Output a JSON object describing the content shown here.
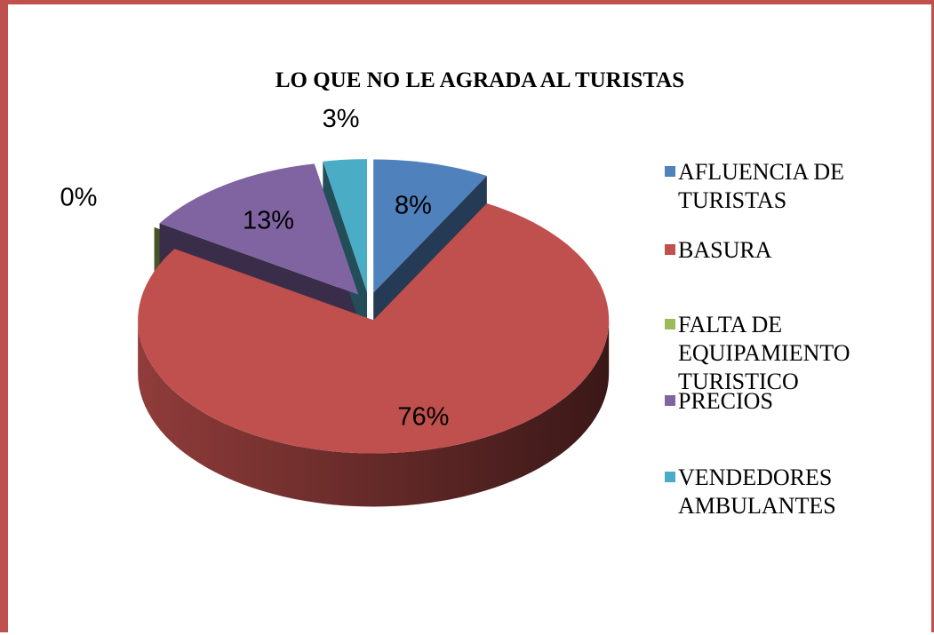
{
  "chart_data": {
    "type": "pie",
    "title": "LO QUE  NO  LE AGRADA AL TURISTAS",
    "categories": [
      "AFLUENCIA DE TURISTAS",
      "BASURA",
      "FALTA DE EQUIPAMIENTO TURISTICO",
      "PRECIOS",
      "VENDEDORES AMBULANTES"
    ],
    "values": [
      8,
      76,
      0,
      13,
      3
    ],
    "value_labels": [
      "8%",
      "76%",
      "0%",
      "13%",
      "3%"
    ],
    "colors": [
      "#4f81bd",
      "#c0504d",
      "#9bbb59",
      "#8064a2",
      "#4bacc6"
    ],
    "legend": "right"
  }
}
